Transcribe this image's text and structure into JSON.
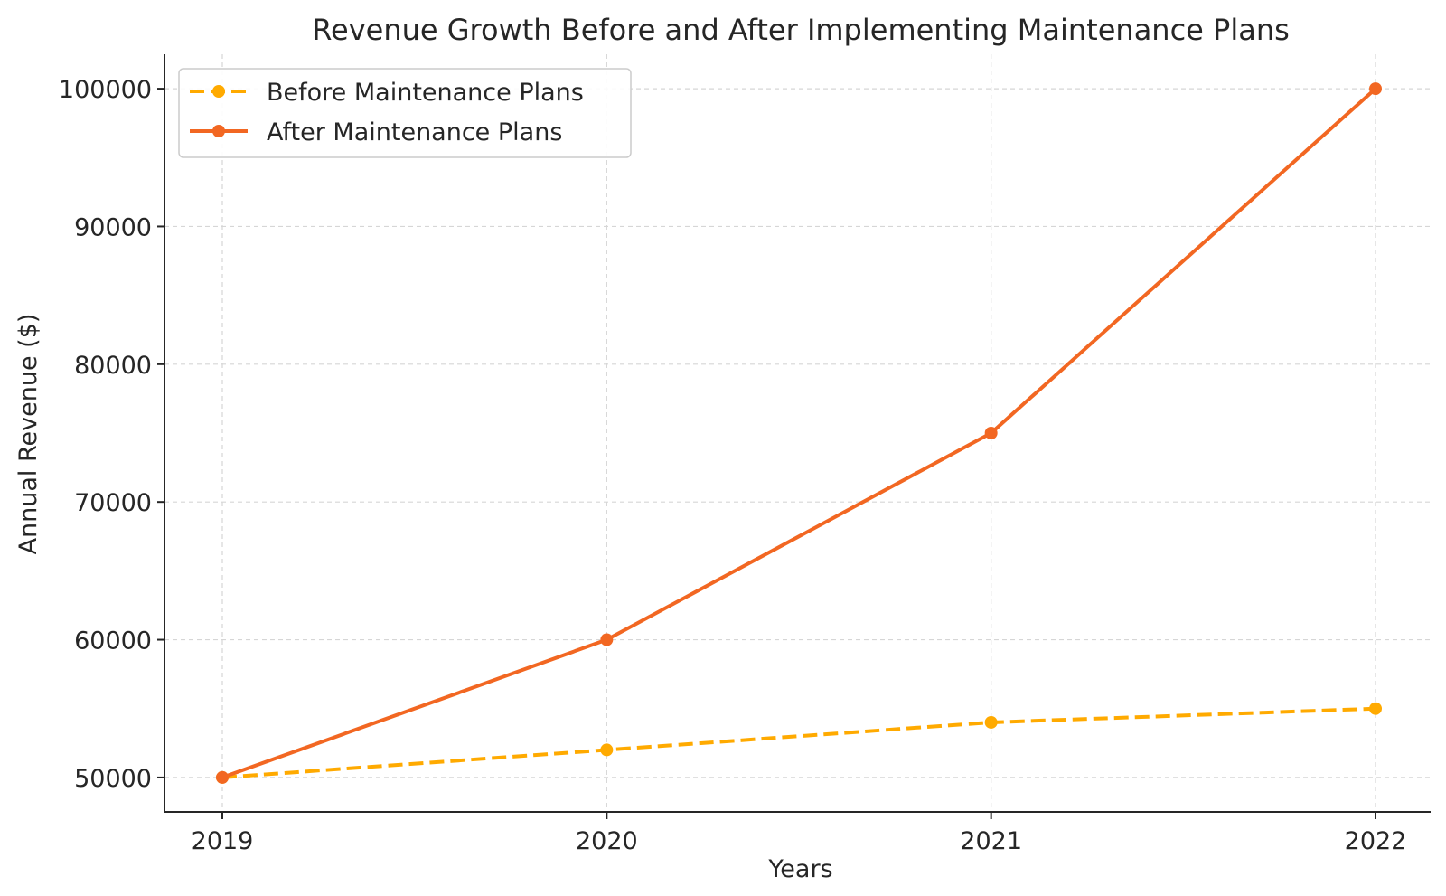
{
  "chart_data": {
    "type": "line",
    "title": "Revenue Growth Before and After Implementing Maintenance Plans",
    "xlabel": "Years",
    "ylabel": "Annual Revenue ($)",
    "categories": [
      "2019",
      "2020",
      "2021",
      "2022"
    ],
    "yticks": [
      50000,
      60000,
      70000,
      80000,
      90000,
      100000
    ],
    "ylim": [
      47500,
      102500
    ],
    "grid": true,
    "legend_position": "top-left",
    "series": [
      {
        "name": "Before Maintenance Plans",
        "values": [
          50000,
          52000,
          54000,
          55000
        ],
        "color": "#FFAA00",
        "line_style": "dashed",
        "marker": "circle"
      },
      {
        "name": "After Maintenance Plans",
        "values": [
          50000,
          60000,
          75000,
          100000
        ],
        "color": "#F26722",
        "line_style": "solid",
        "marker": "circle"
      }
    ]
  }
}
